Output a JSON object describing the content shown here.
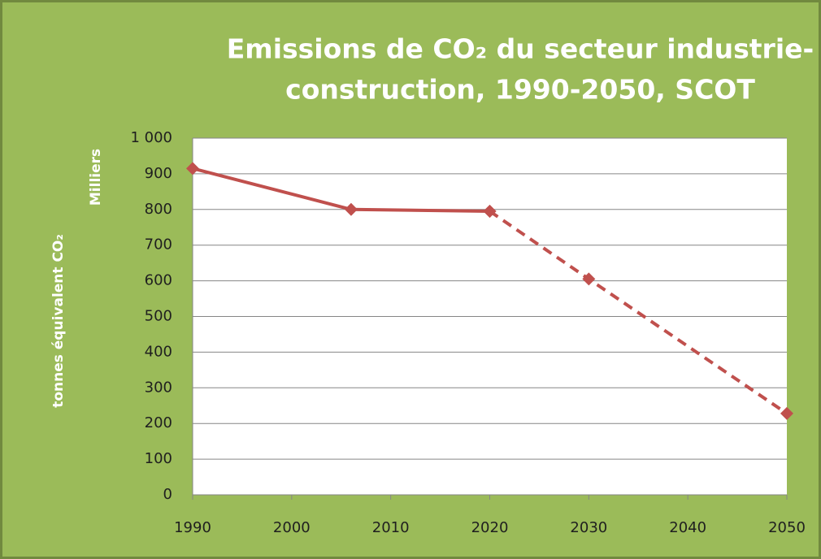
{
  "chart_data": {
    "type": "line",
    "title": [
      "Emissions de CO₂ du secteur industrie-",
      "construction, 1990-2050, SCOT"
    ],
    "y_label": "tonnes équivalent CO₂",
    "y_unit_label": "Milliers",
    "x": [
      1990,
      2006,
      2020,
      2030,
      2050
    ],
    "series": [
      {
        "color": "#c0504d",
        "dashed": false,
        "values": [
          915,
          800,
          795,
          null,
          null
        ]
      },
      {
        "color": "#c0504d",
        "dashed": true,
        "values": [
          null,
          null,
          795,
          605,
          228
        ]
      }
    ],
    "xlim": [
      1990,
      2050
    ],
    "xticks": [
      1990,
      2000,
      2010,
      2020,
      2030,
      2040,
      2050
    ],
    "ylim": [
      0,
      1000
    ],
    "yticks": [
      0,
      100,
      200,
      300,
      400,
      500,
      600,
      700,
      800,
      900,
      {
        "value": 1000,
        "label": "1 000"
      }
    ],
    "grid": true
  }
}
